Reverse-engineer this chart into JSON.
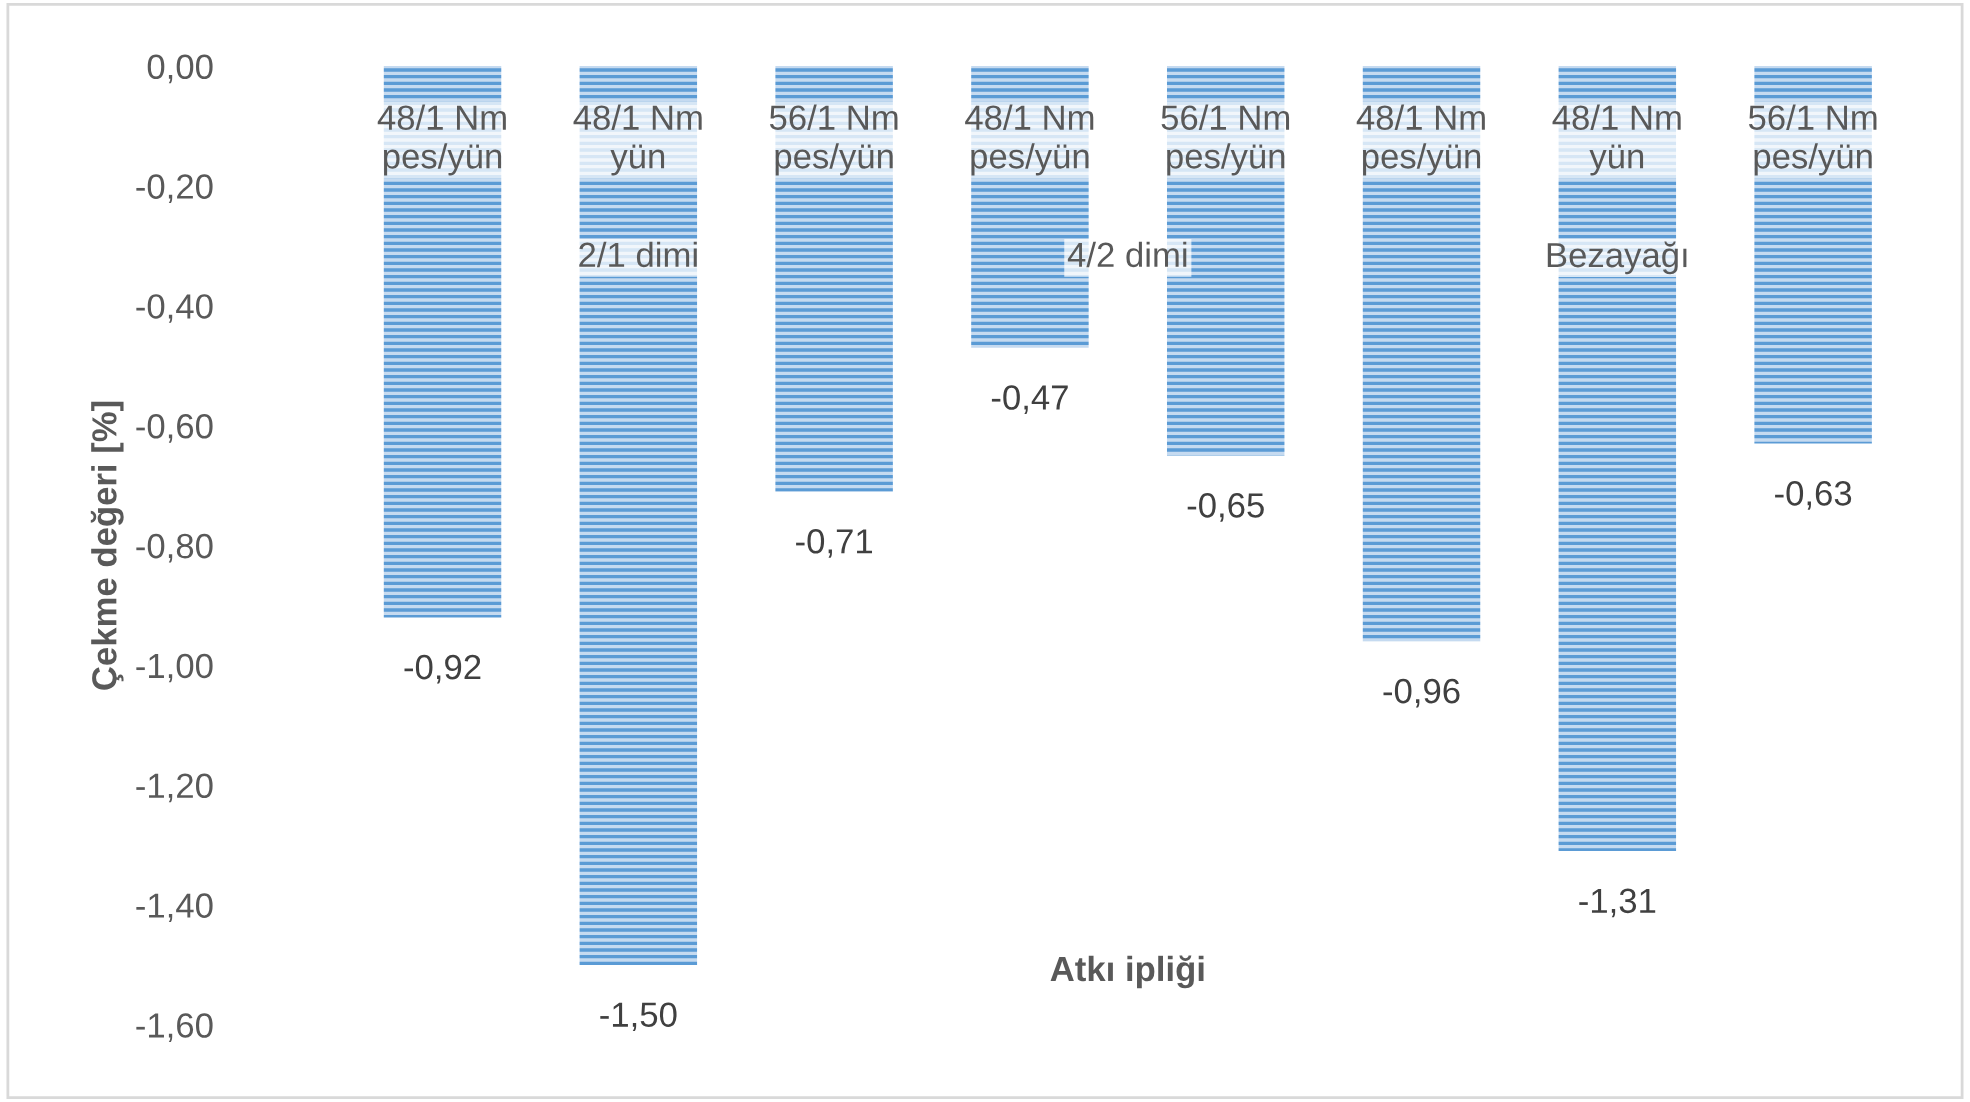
{
  "chart_data": {
    "type": "bar",
    "xlabel": "Atkı ipliği",
    "ylabel": "Çekme değeri [%]",
    "categories": [
      "48/1 Nm pes/yün",
      "48/1 Nm yün",
      "56/1 Nm pes/yün",
      "48/1 Nm pes/yün",
      "56/1 Nm pes/yün",
      "48/1 Nm pes/yün",
      "48/1 Nm yün",
      "56/1 Nm pes/yün"
    ],
    "values": [
      -0.92,
      -1.5,
      -0.71,
      -0.47,
      -0.65,
      -0.96,
      -1.31,
      -0.63
    ],
    "value_labels": [
      "-0,92",
      "-1,50",
      "-0,71",
      "-0,47",
      "-0,65",
      "-0,96",
      "-1,31",
      "-0,63"
    ],
    "color": "#5b9bd5",
    "ylim": [
      -1.6,
      0
    ],
    "yticks": [
      {
        "value": 0,
        "label": "0,00"
      },
      {
        "value": -0.2,
        "label": "-0,20"
      },
      {
        "value": -0.4,
        "label": "-0,40"
      },
      {
        "value": -0.6,
        "label": "-0,60"
      },
      {
        "value": -0.8,
        "label": "-0,80"
      },
      {
        "value": -1.0,
        "label": "-1,00"
      },
      {
        "value": -1.2,
        "label": "-1,20"
      },
      {
        "value": -1.4,
        "label": "-1,40"
      },
      {
        "value": -1.6,
        "label": "-1,60"
      }
    ],
    "annotations": [
      "2/1 dimi",
      "4/2 dimi",
      "Bezayağı"
    ],
    "grid": false,
    "legend": false
  }
}
